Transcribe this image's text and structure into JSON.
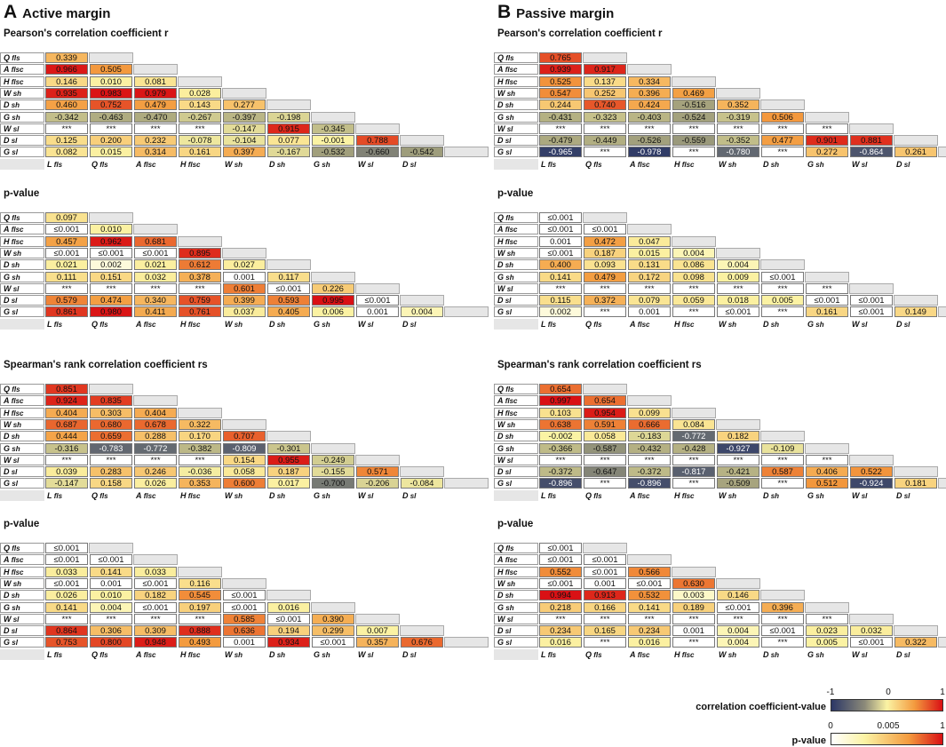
{
  "panels": [
    {
      "letter": "A",
      "title": "Active margin",
      "labels": [
        {
          "b": "L",
          "s": " fls"
        },
        {
          "b": "Q",
          "s": " fls"
        },
        {
          "b": "A",
          "s": " flsc"
        },
        {
          "b": "H",
          "s": " flsc"
        },
        {
          "b": "W",
          "s": " sh"
        },
        {
          "b": "D",
          "s": " sh"
        },
        {
          "b": "G",
          "s": " sh"
        },
        {
          "b": "W",
          "s": " sl"
        },
        {
          "b": "D",
          "s": " sl"
        },
        {
          "b": "G",
          "s": " sl"
        }
      ],
      "matrices": [
        {
          "title": "Pearson's correlation coefficient r",
          "kind": "corr",
          "rows": [
            [
              "0.339"
            ],
            [
              "0.966",
              "0.505"
            ],
            [
              "0.146",
              "0.010",
              "0.081"
            ],
            [
              "0.935",
              "0.983",
              "0.979",
              "0.028"
            ],
            [
              "0.460",
              "0.752",
              "0.479",
              "0.143",
              "0.277"
            ],
            [
              "-0.342",
              "-0.463",
              "-0.470",
              "-0.267",
              "-0.397",
              "-0.198"
            ],
            [
              "***",
              "***",
              "***",
              "***",
              "-0.147",
              "0.915",
              "-0.345"
            ],
            [
              "0.125",
              "0.200",
              "0.232",
              "-0.078",
              "-0.104",
              "0.077",
              "-0.001",
              "0.788"
            ],
            [
              "0.082",
              "0.015",
              "0.314",
              "0.161",
              "0.397",
              "-0.167",
              "-0.532",
              "-0.660",
              "-0.542"
            ]
          ]
        },
        {
          "title": "p-value",
          "kind": "p",
          "rows": [
            [
              "0.097"
            ],
            [
              "≤0.001",
              "0.010"
            ],
            [
              "0.457",
              "0.962",
              "0.681"
            ],
            [
              "≤0.001",
              "≤0.001",
              "≤0.001",
              "0.895"
            ],
            [
              "0.021",
              "0.002",
              "0.021",
              "0.612",
              "0.027"
            ],
            [
              "0.111",
              "0.151",
              "0.032",
              "0.378",
              "0.001",
              "0.117"
            ],
            [
              "***",
              "***",
              "***",
              "***",
              "0.601",
              "≤0.001",
              "0.226"
            ],
            [
              "0.579",
              "0.474",
              "0.340",
              "0.759",
              "0.399",
              "0.593",
              "0.995",
              "≤0.001"
            ],
            [
              "0.861",
              "0.980",
              "0.411",
              "0.761",
              "0.037",
              "0.405",
              "0.006",
              "0.001",
              "0.004"
            ]
          ]
        },
        {
          "title": "Spearman's rank correlation coefficient rs",
          "kind": "corr",
          "rows": [
            [
              "0.851"
            ],
            [
              "0.924",
              "0.835"
            ],
            [
              "0.404",
              "0.303",
              "0.404"
            ],
            [
              "0.687",
              "0.680",
              "0.678",
              "0.322"
            ],
            [
              "0.444",
              "0.659",
              "0.288",
              "0.170",
              "0.707"
            ],
            [
              "-0.316",
              "-0.783",
              "-0.772",
              "-0.382",
              "-0.809",
              "-0.301"
            ],
            [
              "***",
              "***",
              "***",
              "***",
              "0.154",
              "0.955",
              "-0.249"
            ],
            [
              "0.039",
              "0.283",
              "0.246",
              "-0.036",
              "0.058",
              "0.187",
              "-0.155",
              "0.571"
            ],
            [
              "-0.147",
              "0.158",
              "0.026",
              "0.353",
              "0.600",
              "0.017",
              "-0.700",
              "-0.206",
              "-0.084"
            ]
          ]
        },
        {
          "title": "p-value",
          "kind": "p",
          "rows": [
            [
              "≤0.001"
            ],
            [
              "≤0.001",
              "≤0.001"
            ],
            [
              "0.033",
              "0.141",
              "0.033"
            ],
            [
              "≤0.001",
              "0.001",
              "≤0.001",
              "0.116"
            ],
            [
              "0.026",
              "0.010",
              "0.182",
              "0.545",
              "≤0.001"
            ],
            [
              "0.141",
              "0.004",
              "≤0.001",
              "0.197",
              "≤0.001",
              "0.016"
            ],
            [
              "***",
              "***",
              "***",
              "***",
              "0.585",
              "≤0.001",
              "0.390"
            ],
            [
              "0.864",
              "0.306",
              "0.309",
              "0.888",
              "0.636",
              "0.194",
              "0.299",
              "0.007"
            ],
            [
              "0.753",
              "0.800",
              "0.948",
              "0.493",
              "0.001",
              "0.934",
              "≤0.001",
              "0.357",
              "0.676"
            ]
          ]
        }
      ]
    },
    {
      "letter": "B",
      "title": "Passive margin",
      "labels": [
        {
          "b": "L",
          "s": " fls"
        },
        {
          "b": "Q",
          "s": " fls"
        },
        {
          "b": "A",
          "s": " flsc"
        },
        {
          "b": "H",
          "s": " flsc"
        },
        {
          "b": "W",
          "s": " sh"
        },
        {
          "b": "D",
          "s": " sh"
        },
        {
          "b": "G",
          "s": " sh"
        },
        {
          "b": "W",
          "s": " sl"
        },
        {
          "b": "D",
          "s": " sl"
        },
        {
          "b": "G",
          "s": " sl"
        }
      ],
      "matrices": [
        {
          "title": "Pearson's correlation coefficient r",
          "kind": "corr",
          "rows": [
            [
              "0.765"
            ],
            [
              "0.939",
              "0.917"
            ],
            [
              "0.525",
              "0.137",
              "0.334"
            ],
            [
              "0.547",
              "0.252",
              "0.396",
              "0.469"
            ],
            [
              "0.244",
              "0.740",
              "0.424",
              "-0.516",
              "0.352"
            ],
            [
              "-0.431",
              "-0.323",
              "-0.403",
              "-0.524",
              "-0.319",
              "0.506"
            ],
            [
              "***",
              "***",
              "***",
              "***",
              "***",
              "***",
              "***"
            ],
            [
              "-0.479",
              "-0.449",
              "-0.526",
              "-0.559",
              "-0.352",
              "0.477",
              "0.901",
              "0.881"
            ],
            [
              "-0.965",
              "***",
              "-0.978",
              "***",
              "-0.780",
              "***",
              "0.272",
              "-0.864",
              "0.261"
            ]
          ]
        },
        {
          "title": "p-value",
          "kind": "p",
          "rows": [
            [
              "≤0.001"
            ],
            [
              "≤0.001",
              "≤0.001"
            ],
            [
              "0.001",
              "0.472",
              "0.047"
            ],
            [
              "≤0.001",
              "0.187",
              "0.015",
              "0.004"
            ],
            [
              "0.400",
              "0.093",
              "0.131",
              "0.086",
              "0.004"
            ],
            [
              "0.141",
              "0.479",
              "0.172",
              "0.098",
              "0.009",
              "≤0.001"
            ],
            [
              "***",
              "***",
              "***",
              "***",
              "***",
              "***",
              "***"
            ],
            [
              "0.115",
              "0.372",
              "0.079",
              "0.059",
              "0.018",
              "0.005",
              "≤0.001",
              "≤0.001"
            ],
            [
              "0.002",
              "***",
              "0.001",
              "***",
              "≤0.001",
              "***",
              "0.161",
              "≤0.001",
              "0.149"
            ]
          ]
        },
        {
          "title": "Spearman's rank correlation coefficient rs",
          "kind": "corr",
          "rows": [
            [
              "0.654"
            ],
            [
              "0.997",
              "0.654"
            ],
            [
              "0.103",
              "0.954",
              "0.099"
            ],
            [
              "0.638",
              "0.591",
              "0.666",
              "0.084"
            ],
            [
              "-0.002",
              "0.058",
              "-0.183",
              "-0.772",
              "0.182"
            ],
            [
              "-0.366",
              "-0.587",
              "-0.432",
              "-0.428",
              "-0.927",
              "-0.109"
            ],
            [
              "***",
              "***",
              "***",
              "***",
              "***",
              "***",
              "***"
            ],
            [
              "-0.372",
              "-0.647",
              "-0.372",
              "-0.817",
              "-0.421",
              "0.587",
              "0.406",
              "0.522"
            ],
            [
              "-0.896",
              "***",
              "-0.896",
              "***",
              "-0.509",
              "***",
              "0.512",
              "-0.924",
              "0.181"
            ]
          ]
        },
        {
          "title": "p-value",
          "kind": "p",
          "rows": [
            [
              "≤0.001"
            ],
            [
              "≤0.001",
              "≤0.001"
            ],
            [
              "0.552",
              "≤0.001",
              "0.566"
            ],
            [
              "≤0.001",
              "0.001",
              "≤0.001",
              "0.630"
            ],
            [
              "0.994",
              "0.913",
              "0.532",
              "0.003",
              "0.146"
            ],
            [
              "0.218",
              "0.166",
              "0.141",
              "0.189",
              "≤0.001",
              "0.396"
            ],
            [
              "***",
              "***",
              "***",
              "***",
              "***",
              "***",
              "***"
            ],
            [
              "0.234",
              "0.165",
              "0.234",
              "0.001",
              "0.004",
              "≤0.001",
              "0.023",
              "0.032"
            ],
            [
              "0.016",
              "***",
              "0.016",
              "***",
              "0.004",
              "***",
              "0.005",
              "≤0.001",
              "0.322"
            ]
          ]
        }
      ]
    }
  ],
  "legend": {
    "corr": {
      "label": "correlation coefficient-value",
      "ticks": [
        "-1",
        "0",
        "1"
      ]
    },
    "p": {
      "label": "p-value",
      "ticks": [
        "0",
        "0.005",
        "1"
      ]
    }
  },
  "colors": {
    "neg": "#2b3766",
    "mid": "#fbf3a4",
    "high": "#d90f14",
    "mid2": "#f39a3e",
    "grey": "#e6e6e6"
  }
}
